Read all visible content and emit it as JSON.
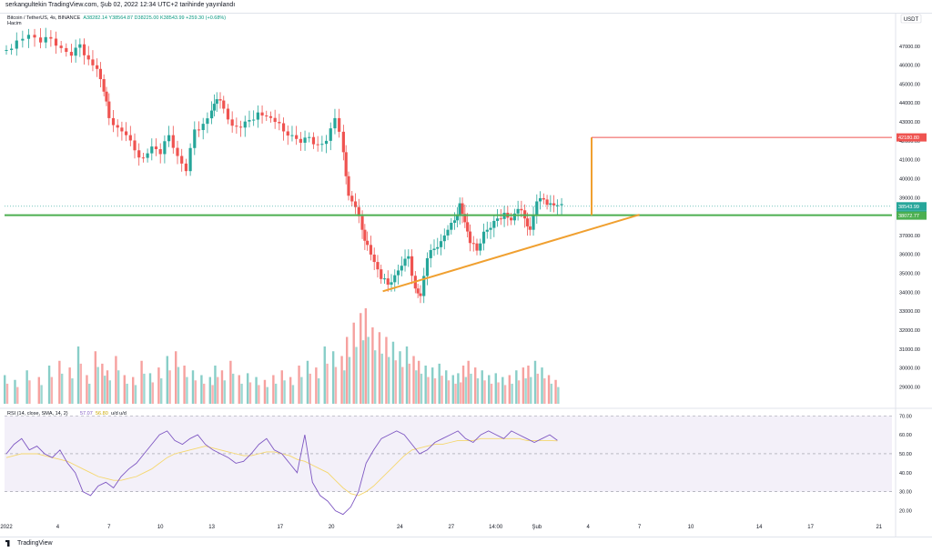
{
  "header": {
    "publisher_line": "serkangultekin TradingView.com, Şub 02, 2022 12:34 UTC+2 tarihinde yayınlandı"
  },
  "legend": {
    "symbol": "Bitcoin / TetherUS, 4s, BINANCE",
    "ohlc": "A38282.14  Y38564.87  D38225.00  K38543.99  +259.30 (+0.68%)",
    "volume_label": "Hacim",
    "rsi_label": "RSI (14, close, SMA, 14, 2)",
    "rsi_value": "57.07",
    "rsi_sma_value": "56.80",
    "rsi_suffix": "u/d u/d"
  },
  "price_axis": {
    "currency": "USDT",
    "ticks": [
      "47000.00",
      "46000.00",
      "45000.00",
      "44000.00",
      "43000.00",
      "42000.00",
      "41000.00",
      "40000.00",
      "39000.00",
      "38000.00",
      "37000.00",
      "36000.00",
      "35000.00",
      "34000.00",
      "33000.00",
      "32000.00",
      "31000.00",
      "30000.00",
      "29000.00"
    ],
    "labels": {
      "target": "42180.80",
      "last": "38543.99",
      "countdown": "01:25:30",
      "support": "38072.77"
    }
  },
  "rsi_axis": {
    "ticks": [
      "70.00",
      "60.00",
      "50.00",
      "40.00",
      "30.00",
      "20.00"
    ]
  },
  "time_axis": {
    "ticks": [
      "2022",
      "4",
      "7",
      "10",
      "13",
      "17",
      "20",
      "24",
      "27",
      "14:00",
      "Şub",
      "4",
      "7",
      "10",
      "14",
      "17",
      "21"
    ]
  },
  "footer": {
    "brand": "TradingView"
  },
  "colors": {
    "up": "#26a69a",
    "down": "#ef5350",
    "support_line": "#4caf50",
    "triangle_line": "#f0a030",
    "target_line": "#ef5350",
    "rsi_line": "#7e57c2",
    "rsi_sma": "#f5d76e",
    "rsi_band": "#7e57c2"
  },
  "chart_data": {
    "type": "candlestick",
    "symbol": "Bitcoin / TetherUS",
    "interval": "4s",
    "exchange": "BINANCE",
    "price_range": [
      28300,
      48000
    ],
    "rsi_range": [
      15,
      73
    ],
    "support_level": 38072.77,
    "target_level": 42180.8,
    "triangle_support": {
      "from": [
        22,
        34050
      ],
      "to": [
        37,
        38100
      ]
    },
    "projection_date": "Şub 3",
    "time_ticks": [
      {
        "label": "2022",
        "day": 0
      },
      {
        "label": "4",
        "day": 3
      },
      {
        "label": "7",
        "day": 6
      },
      {
        "label": "10",
        "day": 9
      },
      {
        "label": "13",
        "day": 12
      },
      {
        "label": "17",
        "day": 16
      },
      {
        "label": "20",
        "day": 19
      },
      {
        "label": "24",
        "day": 23
      },
      {
        "label": "27",
        "day": 26
      },
      {
        "label": "14:00",
        "day": 28.6
      },
      {
        "label": "Şub",
        "day": 31
      },
      {
        "label": "4",
        "day": 34
      },
      {
        "label": "7",
        "day": 37
      },
      {
        "label": "10",
        "day": 40
      },
      {
        "label": "14",
        "day": 44
      },
      {
        "label": "17",
        "day": 47
      },
      {
        "label": "21",
        "day": 51
      }
    ],
    "close_path": [
      [
        0,
        46800
      ],
      [
        0.6,
        47300
      ],
      [
        1.3,
        47600
      ],
      [
        2,
        47200
      ],
      [
        2.6,
        47400
      ],
      [
        3.2,
        46900
      ],
      [
        3.8,
        46500
      ],
      [
        4.3,
        47100
      ],
      [
        4.8,
        46300
      ],
      [
        5.3,
        45800
      ],
      [
        5.7,
        44600
      ],
      [
        6.0,
        43200
      ],
      [
        6.5,
        42700
      ],
      [
        7.0,
        42300
      ],
      [
        7.5,
        41500
      ],
      [
        8.0,
        41100
      ],
      [
        8.5,
        41700
      ],
      [
        9.0,
        41300
      ],
      [
        9.5,
        42300
      ],
      [
        10.0,
        41200
      ],
      [
        10.5,
        40400
      ],
      [
        11.0,
        42600
      ],
      [
        11.5,
        42900
      ],
      [
        12.0,
        43600
      ],
      [
        12.3,
        44200
      ],
      [
        12.7,
        43700
      ],
      [
        13.2,
        42800
      ],
      [
        13.7,
        42700
      ],
      [
        14.2,
        43100
      ],
      [
        14.7,
        43500
      ],
      [
        15.2,
        43300
      ],
      [
        15.7,
        43000
      ],
      [
        16.2,
        42500
      ],
      [
        16.7,
        42300
      ],
      [
        17.2,
        41900
      ],
      [
        17.7,
        42200
      ],
      [
        18.2,
        41800
      ],
      [
        18.7,
        42000
      ],
      [
        19.2,
        43200
      ],
      [
        19.7,
        41400
      ],
      [
        20.0,
        39100
      ],
      [
        20.4,
        38500
      ],
      [
        20.8,
        37300
      ],
      [
        21.1,
        36500
      ],
      [
        21.5,
        35600
      ],
      [
        21.9,
        34700
      ],
      [
        22.3,
        34400
      ],
      [
        22.7,
        34900
      ],
      [
        23.1,
        35400
      ],
      [
        23.5,
        35900
      ],
      [
        23.9,
        34200
      ],
      [
        24.2,
        33800
      ],
      [
        24.6,
        35800
      ],
      [
        25.0,
        36300
      ],
      [
        25.4,
        36700
      ],
      [
        25.8,
        37300
      ],
      [
        26.2,
        37800
      ],
      [
        26.5,
        38700
      ],
      [
        26.8,
        37700
      ],
      [
        27.1,
        36600
      ],
      [
        27.5,
        36200
      ],
      [
        27.9,
        37200
      ],
      [
        28.3,
        37400
      ],
      [
        28.7,
        37900
      ],
      [
        29.1,
        38200
      ],
      [
        29.5,
        37800
      ],
      [
        29.9,
        38400
      ],
      [
        30.3,
        37900
      ],
      [
        30.6,
        37300
      ],
      [
        31.0,
        38800
      ],
      [
        31.4,
        38900
      ],
      [
        31.8,
        38700
      ],
      [
        32.2,
        38600
      ]
    ],
    "volume_levels": [
      0.3,
      0.25,
      0.35,
      0.28,
      0.4,
      0.45,
      0.38,
      0.6,
      0.3,
      0.55,
      0.42,
      0.35,
      0.5,
      0.3,
      0.28,
      0.45,
      0.32,
      0.38,
      0.5,
      0.55,
      0.4,
      0.35,
      0.3,
      0.28,
      0.4,
      0.35,
      0.45,
      0.3,
      0.32,
      0.28,
      0.25,
      0.3,
      0.35,
      0.28,
      0.4,
      0.45,
      0.38,
      0.6,
      0.55,
      0.5,
      0.7,
      0.85,
      0.95,
      1.0,
      0.8,
      0.75,
      0.7,
      0.65,
      0.55,
      0.6,
      0.5,
      0.45,
      0.4,
      0.38,
      0.42,
      0.35,
      0.3,
      0.32,
      0.4,
      0.45,
      0.38,
      0.35,
      0.3,
      0.32,
      0.28,
      0.3,
      0.35,
      0.38,
      0.4,
      0.45,
      0.38,
      0.3,
      0.25
    ],
    "rsi": [
      50,
      55,
      58,
      52,
      54,
      50,
      48,
      52,
      45,
      40,
      30,
      28,
      33,
      35,
      32,
      38,
      42,
      45,
      50,
      55,
      60,
      62,
      57,
      55,
      58,
      60,
      55,
      52,
      50,
      48,
      45,
      46,
      50,
      55,
      58,
      52,
      50,
      45,
      40,
      60,
      35,
      28,
      25,
      20,
      18,
      22,
      30,
      45,
      52,
      58,
      60,
      62,
      60,
      55,
      50,
      52,
      56,
      58,
      60,
      62,
      58,
      56,
      60,
      62,
      60,
      58,
      62,
      60,
      58,
      56,
      58,
      60,
      57.07
    ],
    "rsi_sma": [
      48,
      49,
      50,
      50,
      50,
      49,
      48,
      47,
      46,
      44,
      42,
      40,
      38,
      37,
      36,
      36,
      37,
      38,
      40,
      42,
      45,
      48,
      50,
      51,
      52,
      53,
      54,
      53,
      52,
      51,
      50,
      49,
      49,
      50,
      51,
      51,
      50,
      49,
      47,
      46,
      44,
      42,
      40,
      36,
      32,
      29,
      28,
      30,
      33,
      37,
      41,
      45,
      49,
      52,
      53,
      54,
      55,
      55,
      56,
      57,
      57,
      57,
      58,
      58,
      58,
      58,
      58,
      58,
      57,
      57,
      57,
      57,
      56.8
    ]
  }
}
